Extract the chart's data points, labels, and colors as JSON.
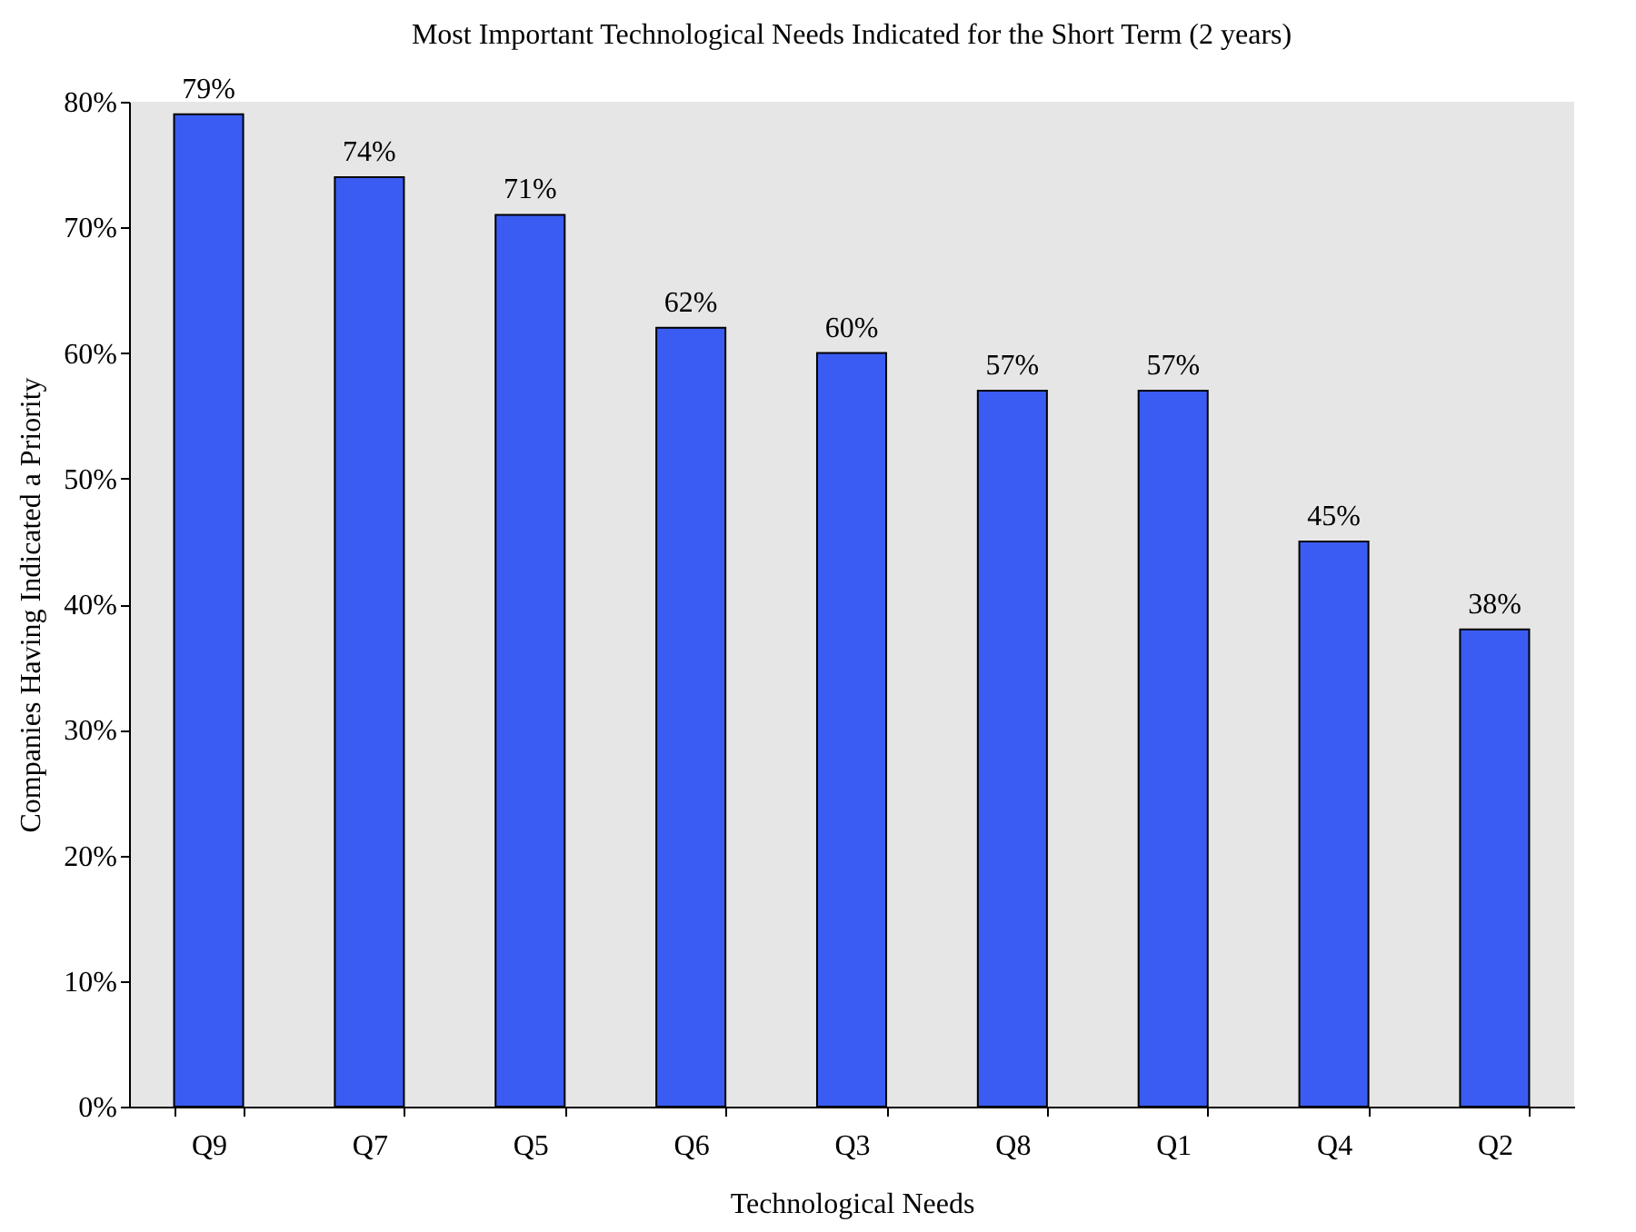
{
  "chart_data": {
    "type": "bar",
    "title": "Most Important Technological Needs Indicated for the Short Term (2 years)",
    "xlabel": "Technological Needs",
    "ylabel": "Companies Having Indicated a Priority",
    "categories": [
      "Q9",
      "Q7",
      "Q5",
      "Q6",
      "Q3",
      "Q8",
      "Q1",
      "Q4",
      "Q2"
    ],
    "values": [
      79,
      74,
      71,
      62,
      60,
      57,
      57,
      45,
      38
    ],
    "value_labels": [
      "79%",
      "74%",
      "71%",
      "62%",
      "60%",
      "57%",
      "57%",
      "45%",
      "38%"
    ],
    "color": "#3a5cf2",
    "ylim": [
      0,
      80
    ],
    "yticks": [
      {
        "value": 0,
        "label": "0%"
      },
      {
        "value": 10,
        "label": "10%"
      },
      {
        "value": 20,
        "label": "20%"
      },
      {
        "value": 30,
        "label": "30%"
      },
      {
        "value": 40,
        "label": "40%"
      },
      {
        "value": 50,
        "label": "50%"
      },
      {
        "value": 60,
        "label": "60%"
      },
      {
        "value": 70,
        "label": "70%"
      },
      {
        "value": 80,
        "label": "80%"
      }
    ],
    "grid": false
  }
}
